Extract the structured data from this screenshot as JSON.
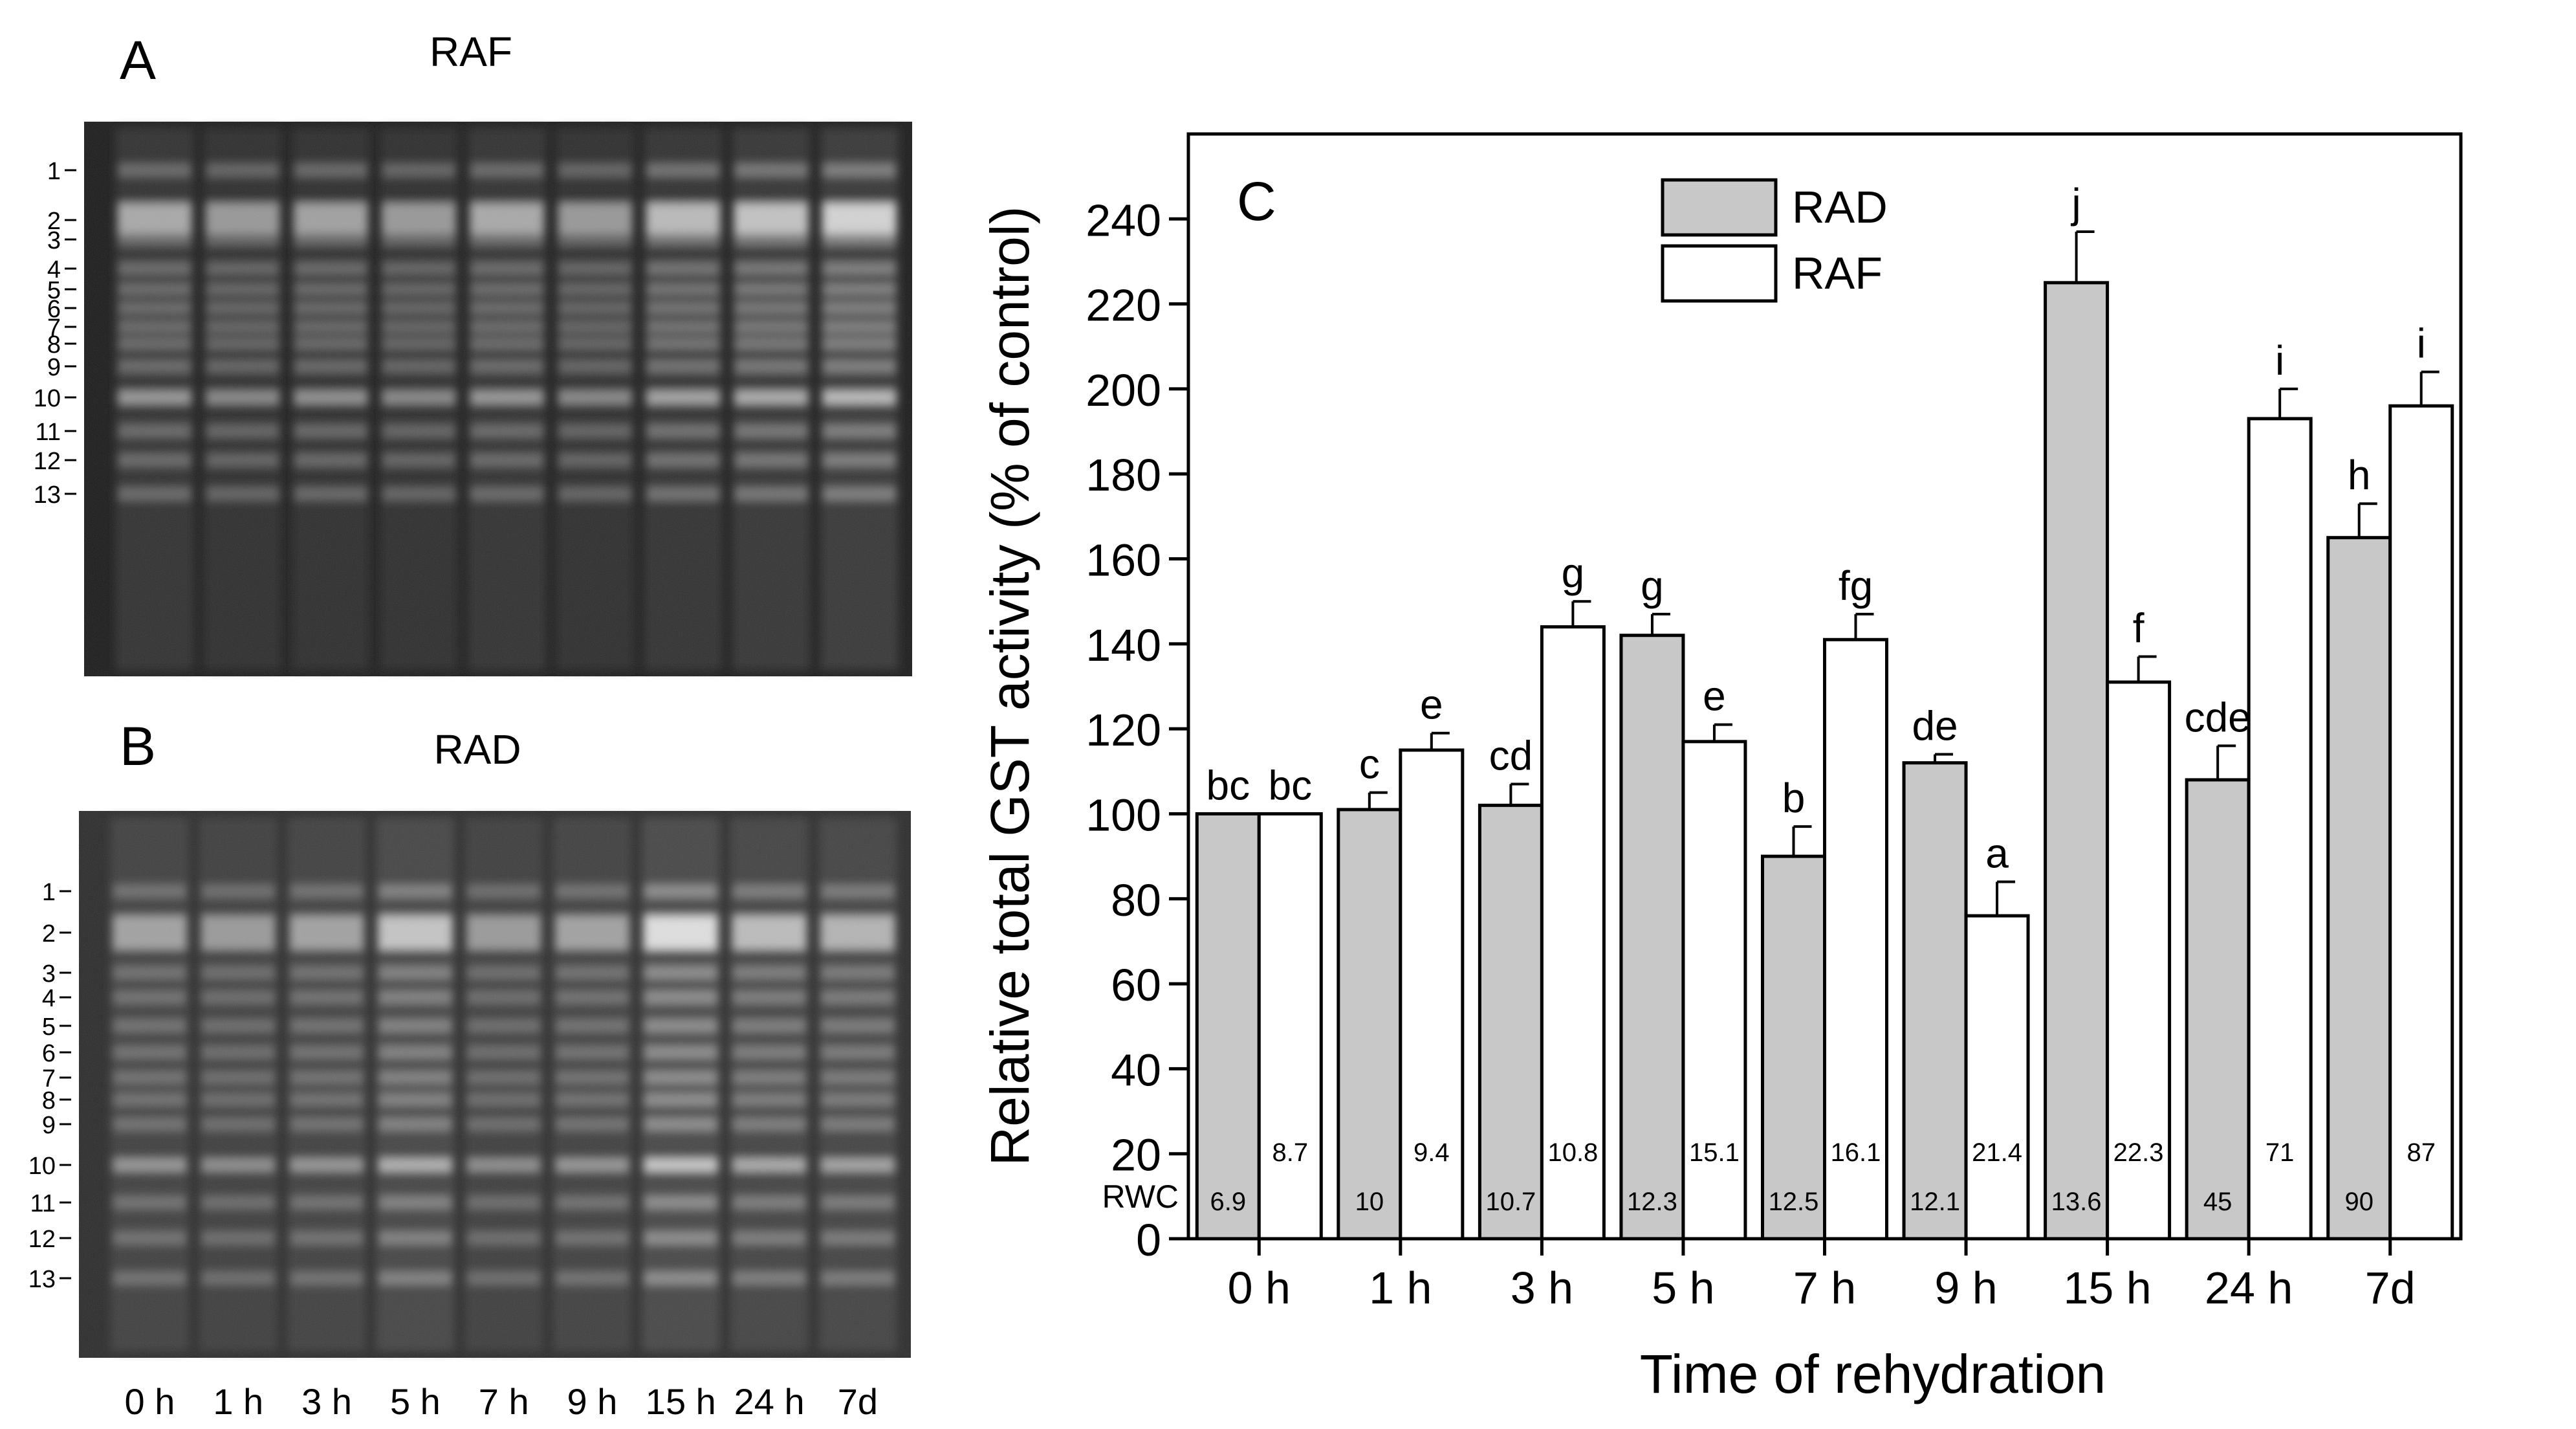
{
  "panels": {
    "A": {
      "letter": "A",
      "title": "RAF",
      "band_labels": [
        "1",
        "2",
        "3",
        "4",
        "5",
        "6",
        "7",
        "8",
        "9",
        "10",
        "11",
        "12",
        "13"
      ]
    },
    "B": {
      "letter": "B",
      "title": "RAD",
      "band_labels": [
        "1",
        "2",
        "3",
        "4",
        "5",
        "6",
        "7",
        "8",
        "9",
        "10",
        "11",
        "12",
        "13"
      ],
      "lane_labels": [
        "0 h",
        "1 h",
        "3 h",
        "5 h",
        "7 h",
        "9 h",
        "15 h",
        "24 h",
        "7d"
      ]
    },
    "C": {
      "letter": "C"
    }
  },
  "chart_data": {
    "type": "bar",
    "title": "",
    "xlabel": "Time of rehydration",
    "ylabel": "Relative total GST activity (% of control)",
    "ylim": [
      0,
      260
    ],
    "yticks": [
      0,
      20,
      40,
      60,
      80,
      100,
      120,
      140,
      160,
      180,
      200,
      220,
      240
    ],
    "categories": [
      "0 h",
      "1 h",
      "3 h",
      "5 h",
      "7 h",
      "9 h",
      "15 h",
      "24 h",
      "7d"
    ],
    "legend_position": "top-center",
    "rwc_label": "RWC",
    "series": [
      {
        "name": "RAD",
        "color": "#c8c8c8",
        "values": [
          100,
          101,
          102,
          142,
          90,
          112,
          225,
          108,
          165
        ],
        "errors": [
          0,
          4,
          5,
          5,
          7,
          2,
          12,
          8,
          8
        ],
        "letters": [
          "bc",
          "c",
          "cd",
          "g",
          "b",
          "de",
          "j",
          "cde",
          "h"
        ],
        "rwc": [
          "6.9",
          "10",
          "10.7",
          "12.3",
          "12.5",
          "12.1",
          "13.6",
          "45",
          "90"
        ]
      },
      {
        "name": "RAF",
        "color": "#ffffff",
        "values": [
          100,
          115,
          144,
          117,
          141,
          76,
          131,
          193,
          196
        ],
        "errors": [
          0,
          4,
          6,
          4,
          6,
          8,
          6,
          7,
          8
        ],
        "letters": [
          "bc",
          "e",
          "g",
          "e",
          "fg",
          "a",
          "f",
          "i",
          "i"
        ],
        "rwc": [
          "8.7",
          "9.4",
          "10.8",
          "15.1",
          "16.1",
          "21.4",
          "22.3",
          "71",
          "87"
        ]
      }
    ]
  }
}
